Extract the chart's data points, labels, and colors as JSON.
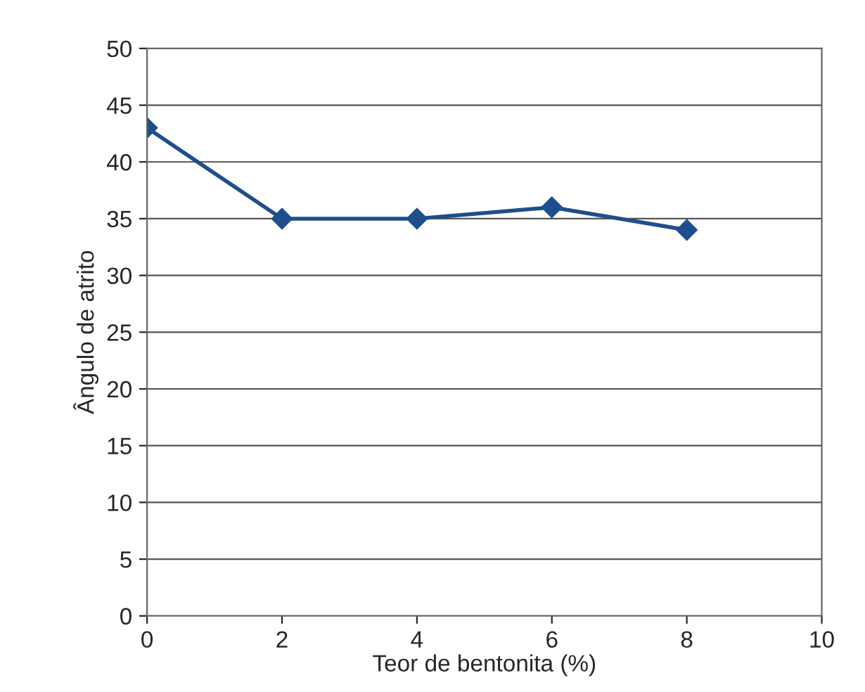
{
  "chart_data": {
    "type": "line",
    "xlabel": "Teor de bentonita (%)",
    "ylabel": "Ângulo de atrito",
    "x": [
      0,
      2,
      4,
      6,
      8
    ],
    "series": [
      {
        "color": "#1f4e8c",
        "values": [
          43,
          35,
          35,
          36,
          34
        ]
      }
    ],
    "xlim": [
      0,
      10
    ],
    "xticks": [
      0,
      2,
      4,
      6,
      8,
      10
    ],
    "ylim": [
      0,
      50
    ],
    "yticks": [
      0,
      5,
      10,
      15,
      20,
      25,
      30,
      35,
      40,
      45,
      50
    ],
    "grid": "y",
    "marker": "diamond",
    "line_style": "solid",
    "legend": false
  }
}
